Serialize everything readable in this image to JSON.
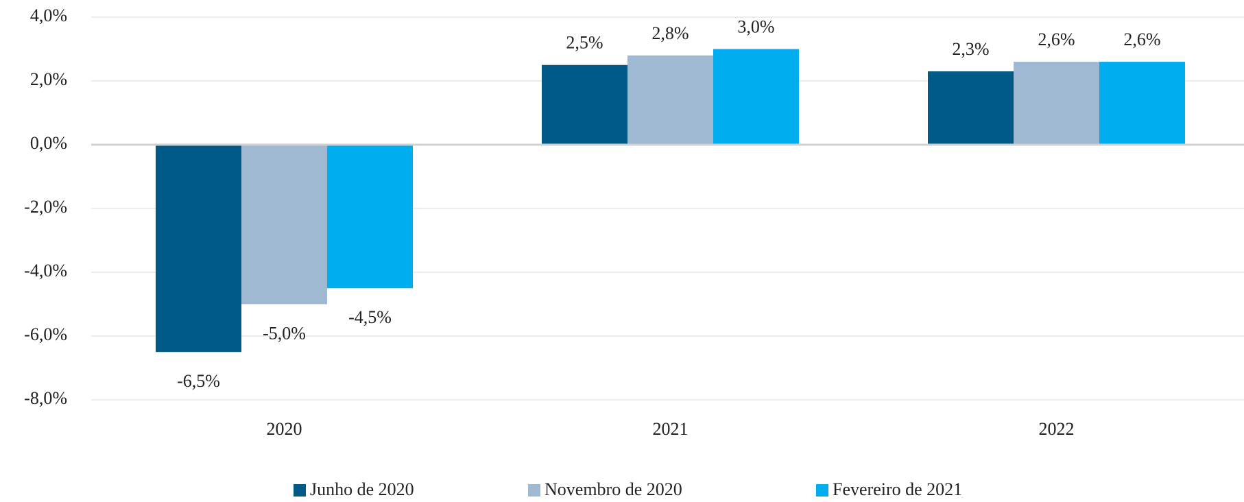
{
  "chart_data": {
    "type": "bar",
    "categories": [
      "2020",
      "2021",
      "2022"
    ],
    "series": [
      {
        "name": "Junho de 2020",
        "color": "#005a87",
        "values": [
          -6.5,
          2.5,
          2.3
        ],
        "value_labels": [
          "-6,5%",
          "2,5%",
          "2,3%"
        ]
      },
      {
        "name": "Novembro de 2020",
        "color": "#a0b9d2",
        "values": [
          -5.0,
          2.8,
          2.6
        ],
        "value_labels": [
          "-5,0%",
          "2,8%",
          "2,6%"
        ]
      },
      {
        "name": "Fevereiro de 2021",
        "color": "#00adef",
        "values": [
          -4.5,
          3.0,
          2.6
        ],
        "value_labels": [
          "-4,5%",
          "3,0%",
          "2,6%"
        ]
      }
    ],
    "ylim": [
      -8,
      4
    ],
    "yticks": [
      {
        "value": -8,
        "label": "-8,0%"
      },
      {
        "value": -6,
        "label": "-6,0%"
      },
      {
        "value": -4,
        "label": "-4,0%"
      },
      {
        "value": -2,
        "label": "-2,0%"
      },
      {
        "value": 0,
        "label": "0,0%"
      },
      {
        "value": 2,
        "label": "2,0%"
      },
      {
        "value": 4,
        "label": "4,0%"
      }
    ],
    "grid": true,
    "legend": "bottom"
  }
}
